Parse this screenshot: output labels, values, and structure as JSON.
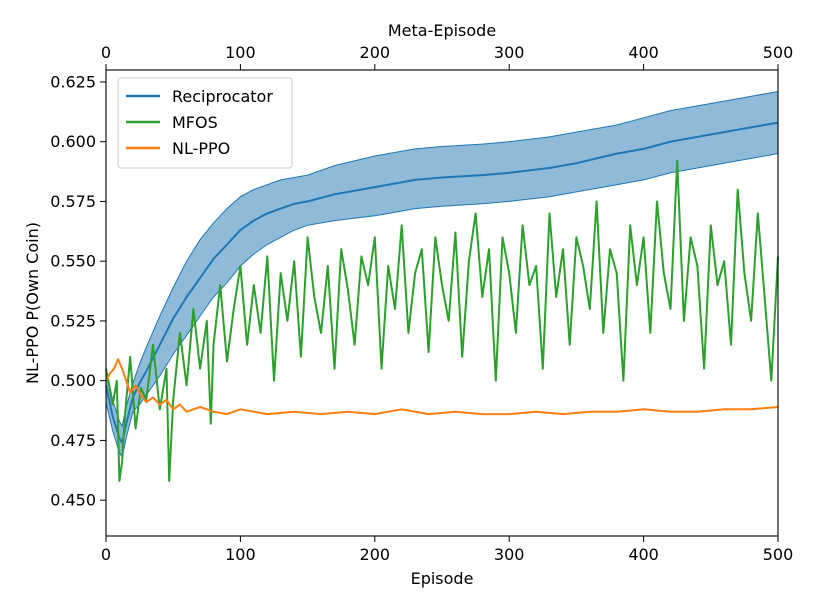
{
  "chart_data": {
    "type": "line",
    "xlabel": "Episode",
    "ylabel": "NL-PPO P(Own Coin)",
    "x2label": "Meta-Episode",
    "xlim": [
      0,
      500
    ],
    "ylim": [
      0.435,
      0.63
    ],
    "x_ticks": [
      0,
      100,
      200,
      300,
      400,
      500
    ],
    "x_tick_labels": [
      "0",
      "100",
      "200",
      "300",
      "400",
      "500"
    ],
    "x2_ticks": [
      0,
      100,
      200,
      300,
      400,
      500
    ],
    "x2_tick_labels": [
      "0",
      "100",
      "200",
      "300",
      "400",
      "500"
    ],
    "y_ticks": [
      0.45,
      0.475,
      0.5,
      0.525,
      0.55,
      0.575,
      0.6,
      0.625
    ],
    "y_tick_labels": [
      "0.450",
      "0.475",
      "0.500",
      "0.525",
      "0.550",
      "0.575",
      "0.600",
      "0.625"
    ],
    "grid": false,
    "legend_position": "top-left",
    "series": [
      {
        "name": "Reciprocator",
        "color": "#1f77b4",
        "band_color": "#1f77b4",
        "x": [
          0,
          5,
          10,
          12,
          15,
          20,
          25,
          30,
          40,
          50,
          60,
          70,
          80,
          90,
          100,
          110,
          120,
          130,
          140,
          150,
          170,
          200,
          230,
          250,
          280,
          300,
          330,
          350,
          380,
          400,
          420,
          450,
          470,
          500
        ],
        "values": [
          0.498,
          0.485,
          0.476,
          0.474,
          0.482,
          0.493,
          0.499,
          0.504,
          0.515,
          0.526,
          0.535,
          0.543,
          0.551,
          0.557,
          0.563,
          0.567,
          0.57,
          0.572,
          0.574,
          0.575,
          0.578,
          0.581,
          0.584,
          0.585,
          0.586,
          0.587,
          0.589,
          0.591,
          0.595,
          0.597,
          0.6,
          0.603,
          0.605,
          0.608
        ],
        "lower": [
          0.491,
          0.479,
          0.47,
          0.468,
          0.476,
          0.487,
          0.49,
          0.494,
          0.502,
          0.511,
          0.519,
          0.527,
          0.535,
          0.541,
          0.548,
          0.553,
          0.557,
          0.56,
          0.563,
          0.565,
          0.567,
          0.569,
          0.572,
          0.573,
          0.574,
          0.575,
          0.577,
          0.579,
          0.582,
          0.584,
          0.587,
          0.59,
          0.592,
          0.595
        ],
        "upper": [
          0.505,
          0.492,
          0.483,
          0.481,
          0.489,
          0.499,
          0.507,
          0.514,
          0.527,
          0.539,
          0.55,
          0.559,
          0.566,
          0.572,
          0.577,
          0.58,
          0.582,
          0.584,
          0.585,
          0.586,
          0.59,
          0.594,
          0.597,
          0.598,
          0.599,
          0.6,
          0.602,
          0.604,
          0.607,
          0.61,
          0.613,
          0.616,
          0.618,
          0.621
        ]
      },
      {
        "name": "MFOS",
        "color": "#2ca02c",
        "x": [
          0,
          5,
          8,
          10,
          12,
          14,
          18,
          22,
          26,
          30,
          35,
          40,
          45,
          47,
          50,
          55,
          60,
          65,
          70,
          75,
          78,
          80,
          85,
          90,
          95,
          100,
          105,
          110,
          115,
          120,
          125,
          130,
          135,
          140,
          145,
          150,
          155,
          160,
          165,
          170,
          175,
          180,
          185,
          190,
          195,
          200,
          205,
          210,
          215,
          220,
          225,
          230,
          235,
          240,
          245,
          250,
          255,
          260,
          265,
          270,
          275,
          280,
          285,
          290,
          295,
          300,
          305,
          310,
          315,
          320,
          325,
          330,
          335,
          340,
          345,
          350,
          355,
          360,
          365,
          370,
          375,
          380,
          385,
          390,
          395,
          400,
          405,
          410,
          415,
          420,
          425,
          430,
          435,
          440,
          445,
          450,
          455,
          460,
          465,
          470,
          475,
          480,
          485,
          490,
          495,
          500
        ],
        "values": [
          0.505,
          0.49,
          0.5,
          0.458,
          0.466,
          0.485,
          0.51,
          0.48,
          0.497,
          0.492,
          0.515,
          0.488,
          0.505,
          0.458,
          0.492,
          0.52,
          0.498,
          0.53,
          0.505,
          0.525,
          0.482,
          0.515,
          0.54,
          0.508,
          0.53,
          0.548,
          0.515,
          0.54,
          0.52,
          0.552,
          0.5,
          0.545,
          0.525,
          0.55,
          0.51,
          0.56,
          0.535,
          0.52,
          0.548,
          0.505,
          0.555,
          0.538,
          0.515,
          0.552,
          0.54,
          0.56,
          0.505,
          0.548,
          0.53,
          0.565,
          0.52,
          0.545,
          0.555,
          0.512,
          0.56,
          0.54,
          0.525,
          0.562,
          0.51,
          0.55,
          0.57,
          0.535,
          0.555,
          0.5,
          0.56,
          0.545,
          0.52,
          0.565,
          0.54,
          0.548,
          0.505,
          0.57,
          0.535,
          0.555,
          0.515,
          0.56,
          0.548,
          0.53,
          0.575,
          0.52,
          0.555,
          0.545,
          0.5,
          0.565,
          0.54,
          0.56,
          0.52,
          0.575,
          0.545,
          0.53,
          0.592,
          0.525,
          0.56,
          0.548,
          0.505,
          0.565,
          0.54,
          0.55,
          0.515,
          0.58,
          0.545,
          0.525,
          0.57,
          0.535,
          0.5,
          0.552
        ]
      },
      {
        "name": "NL-PPO",
        "color": "#ff7f0e",
        "x": [
          0,
          3,
          6,
          9,
          12,
          15,
          18,
          22,
          26,
          30,
          35,
          40,
          45,
          50,
          55,
          60,
          70,
          80,
          90,
          100,
          120,
          140,
          160,
          180,
          200,
          220,
          240,
          260,
          280,
          300,
          320,
          340,
          360,
          380,
          400,
          420,
          440,
          460,
          480,
          500
        ],
        "values": [
          0.5,
          0.503,
          0.505,
          0.509,
          0.505,
          0.5,
          0.495,
          0.498,
          0.494,
          0.491,
          0.493,
          0.49,
          0.492,
          0.488,
          0.49,
          0.487,
          0.489,
          0.487,
          0.486,
          0.488,
          0.486,
          0.487,
          0.486,
          0.487,
          0.486,
          0.488,
          0.486,
          0.487,
          0.486,
          0.486,
          0.487,
          0.486,
          0.487,
          0.487,
          0.488,
          0.487,
          0.487,
          0.488,
          0.488,
          0.489
        ]
      }
    ]
  }
}
